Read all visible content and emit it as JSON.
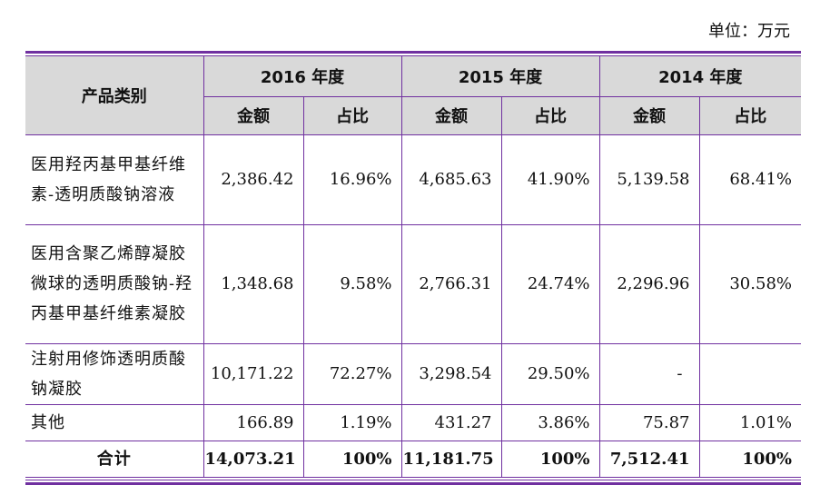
{
  "unit_label": "单位：万元",
  "header": {
    "category": "产品类别",
    "years": [
      "2016 年度",
      "2015 年度",
      "2014 年度"
    ],
    "amount": "金额",
    "ratio": "占比"
  },
  "rows": [
    {
      "name": "医用羟丙基甲基纤维素-透明质酸钠溶液",
      "values": [
        "2,386.42",
        "16.96%",
        "4,685.63",
        "41.90%",
        "5,139.58",
        "68.41%"
      ]
    },
    {
      "name": "医用含聚乙烯醇凝胶微球的透明质酸钠-羟丙基甲基纤维素凝胶",
      "values": [
        "1,348.68",
        "9.58%",
        "2,766.31",
        "24.74%",
        "2,296.96",
        "30.58%"
      ]
    },
    {
      "name": "注射用修饰透明质酸钠凝胶",
      "values": [
        "10,171.22",
        "72.27%",
        "3,298.54",
        "29.50%",
        "-",
        ""
      ]
    },
    {
      "name": "其他",
      "values": [
        "166.89",
        "1.19%",
        "431.27",
        "3.86%",
        "75.87",
        "1.01%"
      ]
    }
  ],
  "total": {
    "name": "合计",
    "values": [
      "14,073.21",
      "100%",
      "11,181.75",
      "100%",
      "7,512.41",
      "100%"
    ]
  }
}
